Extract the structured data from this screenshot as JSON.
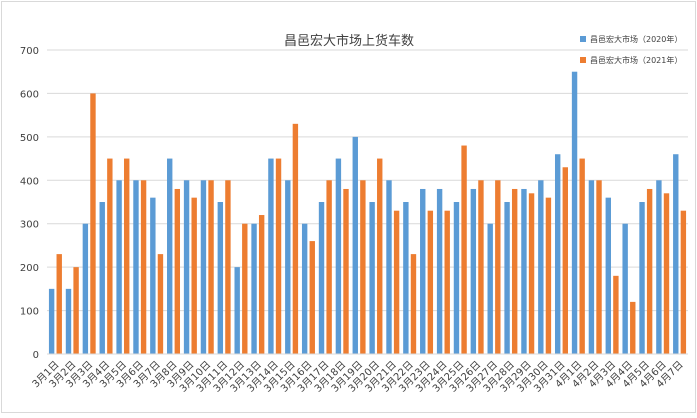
{
  "chart_data": {
    "type": "bar",
    "title": "昌邑宏大市场上货车数",
    "ylim": [
      0,
      700
    ],
    "yticks": [
      0,
      100,
      200,
      300,
      400,
      500,
      600,
      700
    ],
    "grid": true,
    "legend_position": "top-right",
    "categories": [
      "3月1日",
      "3月2日",
      "3月3日",
      "3月4日",
      "3月5日",
      "3月6日",
      "3月7日",
      "3月8日",
      "3月9日",
      "3月10日",
      "3月11日",
      "3月12日",
      "3月13日",
      "3月14日",
      "3月15日",
      "3月16日",
      "3月17日",
      "3月18日",
      "3月19日",
      "3月20日",
      "3月21日",
      "3月22日",
      "3月23日",
      "3月24日",
      "3月25日",
      "3月26日",
      "3月27日",
      "3月28日",
      "3月29日",
      "3月30日",
      "3月31日",
      "4月1日",
      "4月2日",
      "4月3日",
      "4月4日",
      "4月5日",
      "4月6日",
      "4月7日"
    ],
    "series": [
      {
        "name": "昌邑宏大市场（2020年）",
        "color": "#5b9bd5",
        "values": [
          150,
          150,
          300,
          350,
          400,
          400,
          360,
          450,
          400,
          400,
          350,
          200,
          300,
          450,
          400,
          300,
          350,
          450,
          500,
          350,
          400,
          350,
          380,
          380,
          350,
          380,
          300,
          350,
          380,
          400,
          460,
          650,
          400,
          360,
          300,
          350,
          400,
          460
        ]
      },
      {
        "name": "昌邑宏大市场（2021年）",
        "color": "#ed7d31",
        "values": [
          230,
          200,
          600,
          450,
          450,
          400,
          230,
          380,
          360,
          400,
          400,
          300,
          320,
          450,
          530,
          260,
          400,
          380,
          400,
          450,
          330,
          230,
          330,
          330,
          480,
          400,
          400,
          380,
          370,
          360,
          430,
          450,
          400,
          180,
          120,
          380,
          370,
          330
        ]
      }
    ]
  }
}
